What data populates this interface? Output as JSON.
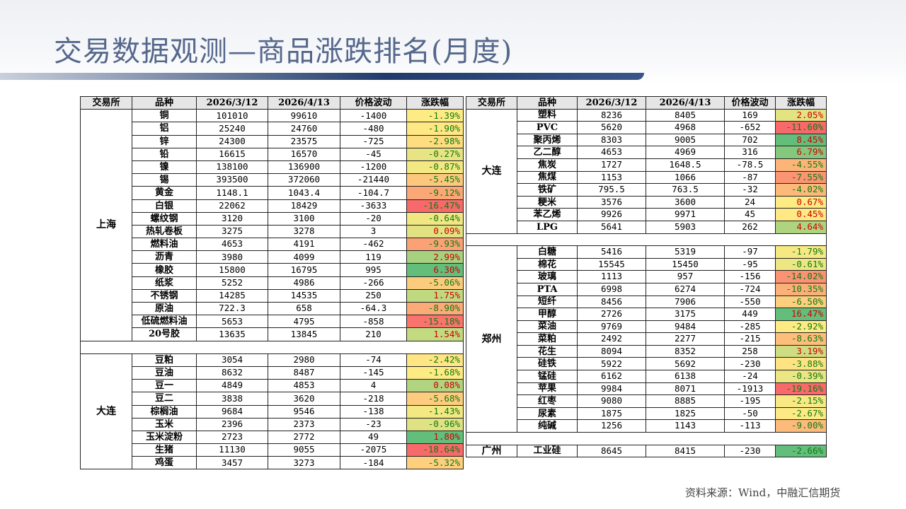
{
  "title": "交易数据观测—商品涨跌排名(月度)",
  "source": "资料来源：Wind，中融汇信期货",
  "left_table": {
    "header": [
      "交易所",
      "品种",
      "2026/3/12",
      "2026/4/13",
      "价格波动",
      "涨跌幅"
    ],
    "groups": [
      {
        "exchange": "上海",
        "rows": [
          [
            "铜",
            "101010",
            "99610",
            "-1400",
            "-1.39%"
          ],
          [
            "铝",
            "25240",
            "24760",
            "-480",
            "-1.90%"
          ],
          [
            "锌",
            "24300",
            "23575",
            "-725",
            "-2.98%"
          ],
          [
            "铅",
            "16615",
            "16570",
            "-45",
            "-0.27%"
          ],
          [
            "镍",
            "138100",
            "136900",
            "-1200",
            "-0.87%"
          ],
          [
            "锡",
            "393500",
            "372060",
            "-21440",
            "-5.45%"
          ],
          [
            "黄金",
            "1148.1",
            "1043.4",
            "-104.7",
            "-9.12%"
          ],
          [
            "白银",
            "22062",
            "18429",
            "-3633",
            "-16.47%"
          ],
          [
            "螺纹钢",
            "3120",
            "3100",
            "-20",
            "-0.64%"
          ],
          [
            "热轧卷板",
            "3275",
            "3278",
            "3",
            "0.09%"
          ],
          [
            "燃料油",
            "4653",
            "4191",
            "-462",
            "-9.93%"
          ],
          [
            "沥青",
            "3980",
            "4099",
            "119",
            "2.99%"
          ],
          [
            "橡胶",
            "15800",
            "16795",
            "995",
            "6.30%"
          ],
          [
            "纸浆",
            "5252",
            "4986",
            "-266",
            "-5.06%"
          ],
          [
            "不锈钢",
            "14285",
            "14535",
            "250",
            "1.75%"
          ],
          [
            "原油",
            "722.3",
            "658",
            "-64.3",
            "-8.90%"
          ],
          [
            "低硫燃料油",
            "5653",
            "4795",
            "-858",
            "-15.18%"
          ],
          [
            "20号胶",
            "13635",
            "13845",
            "210",
            "1.54%"
          ]
        ]
      },
      {
        "exchange": "大连",
        "rows": [
          [
            "豆粕",
            "3054",
            "2980",
            "-74",
            "-2.42%"
          ],
          [
            "豆油",
            "8632",
            "8487",
            "-145",
            "-1.68%"
          ],
          [
            "豆一",
            "4849",
            "4853",
            "4",
            "0.08%"
          ],
          [
            "豆二",
            "3838",
            "3620",
            "-218",
            "-5.68%"
          ],
          [
            "棕榈油",
            "9684",
            "9546",
            "-138",
            "-1.43%"
          ],
          [
            "玉米",
            "2396",
            "2373",
            "-23",
            "-0.96%"
          ],
          [
            "玉米淀粉",
            "2723",
            "2772",
            "49",
            "1.80%"
          ],
          [
            "生猪",
            "11130",
            "9055",
            "-2075",
            "-18.64%"
          ],
          [
            "鸡蛋",
            "3457",
            "3273",
            "-184",
            "-5.32%"
          ]
        ]
      }
    ]
  },
  "right_table": {
    "header": [
      "交易所",
      "品种",
      "2026/3/12",
      "2026/4/13",
      "价格波动",
      "涨跌幅"
    ],
    "groups": [
      {
        "exchange": "大连",
        "rows": [
          [
            "塑料",
            "8236",
            "8405",
            "169",
            "2.05%"
          ],
          [
            "PVC",
            "5620",
            "4968",
            "-652",
            "-11.60%"
          ],
          [
            "聚丙烯",
            "8303",
            "9005",
            "702",
            "8.45%"
          ],
          [
            "乙二醇",
            "4653",
            "4969",
            "316",
            "6.79%"
          ],
          [
            "焦炭",
            "1727",
            "1648.5",
            "-78.5",
            "-4.55%"
          ],
          [
            "焦煤",
            "1153",
            "1066",
            "-87",
            "-7.55%"
          ],
          [
            "铁矿",
            "795.5",
            "763.5",
            "-32",
            "-4.02%"
          ],
          [
            "粳米",
            "3576",
            "3600",
            "24",
            "0.67%"
          ],
          [
            "苯乙烯",
            "9926",
            "9971",
            "45",
            "0.45%"
          ],
          [
            "LPG",
            "5641",
            "5903",
            "262",
            "4.64%"
          ]
        ]
      },
      {
        "exchange": "郑州",
        "rows": [
          [
            "白糖",
            "5416",
            "5319",
            "-97",
            "-1.79%"
          ],
          [
            "棉花",
            "15545",
            "15450",
            "-95",
            "-0.61%"
          ],
          [
            "玻璃",
            "1113",
            "957",
            "-156",
            "-14.02%"
          ],
          [
            "PTA",
            "6998",
            "6274",
            "-724",
            "-10.35%"
          ],
          [
            "短纤",
            "8456",
            "7906",
            "-550",
            "-6.50%"
          ],
          [
            "甲醇",
            "2726",
            "3175",
            "449",
            "16.47%"
          ],
          [
            "菜油",
            "9769",
            "9484",
            "-285",
            "-2.92%"
          ],
          [
            "菜粕",
            "2492",
            "2277",
            "-215",
            "-8.63%"
          ],
          [
            "花生",
            "8094",
            "8352",
            "258",
            "3.19%"
          ],
          [
            "硅铁",
            "5922",
            "5692",
            "-230",
            "-3.88%"
          ],
          [
            "锰硅",
            "6162",
            "6138",
            "-24",
            "-0.39%"
          ],
          [
            "苹果",
            "9984",
            "8071",
            "-1913",
            "-19.16%"
          ],
          [
            "红枣",
            "9080",
            "8885",
            "-195",
            "-2.15%"
          ],
          [
            "尿素",
            "1875",
            "1825",
            "-50",
            "-2.67%"
          ],
          [
            "纯碱",
            "1256",
            "1143",
            "-113",
            "-9.00%"
          ]
        ]
      },
      {
        "exchange": "广州",
        "rows": [
          [
            "工业硅",
            "8645",
            "8415",
            "-230",
            "-2.66%"
          ]
        ]
      }
    ]
  }
}
